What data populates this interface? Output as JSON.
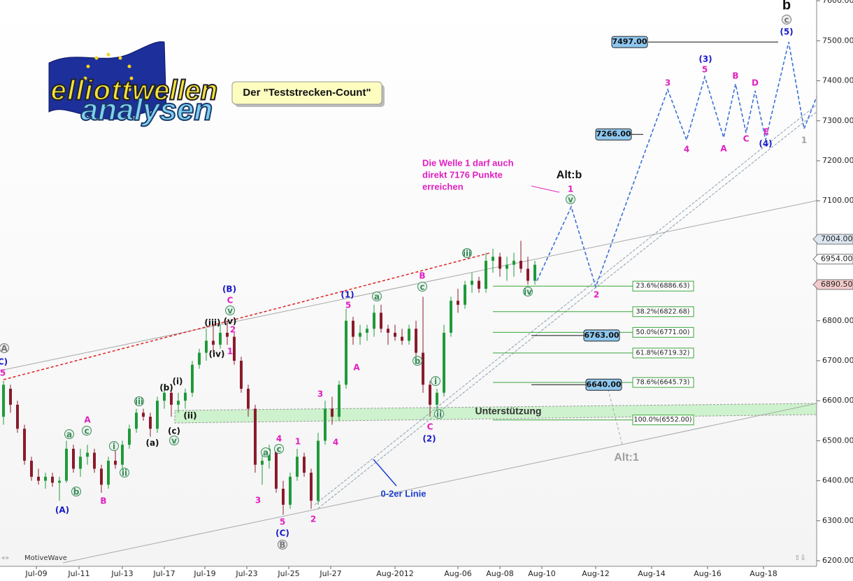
{
  "chart_data": {
    "type": "candlestick",
    "brand": "MotiveWave",
    "up_color": "#1f9a3a",
    "down_color": "#8a1b2b",
    "ylim": [
      6186,
      7602
    ],
    "yticks": [
      {
        "value": 7600,
        "label": "7600.00"
      },
      {
        "value": 7500,
        "label": "7500.00"
      },
      {
        "value": 7400,
        "label": "7400.00"
      },
      {
        "value": 7300,
        "label": "7300.00"
      },
      {
        "value": 7200,
        "label": "7200.00"
      },
      {
        "value": 7100,
        "label": "7100.00"
      },
      {
        "value": 6800,
        "label": "6800.00"
      },
      {
        "value": 6700,
        "label": "6700.00"
      },
      {
        "value": 6600,
        "label": "6600.00"
      },
      {
        "value": 6500,
        "label": "6500.00"
      },
      {
        "value": 6400,
        "label": "6400.00"
      },
      {
        "value": 6300,
        "label": "6300.00"
      },
      {
        "value": 6200,
        "label": "6200.00"
      }
    ],
    "x_labels": [
      "Jul-09",
      "Jul-11",
      "Jul-13",
      "Jul-17",
      "Jul-19",
      "Jul-23",
      "Jul-25",
      "Jul-27",
      "Aug-2012",
      "Aug-06",
      "Aug-08",
      "Aug-10",
      "Aug-12",
      "Aug-14",
      "Aug-16",
      "Aug-18"
    ],
    "candles": [
      [
        6560,
        6650,
        6540,
        6640
      ],
      [
        6630,
        6640,
        6570,
        6590
      ],
      [
        6590,
        6600,
        6520,
        6530
      ],
      [
        6530,
        6540,
        6440,
        6450
      ],
      [
        6450,
        6460,
        6400,
        6410
      ],
      [
        6410,
        6430,
        6390,
        6400
      ],
      [
        6400,
        6420,
        6380,
        6410
      ],
      [
        6410,
        6420,
        6385,
        6395
      ],
      [
        6395,
        6410,
        6350,
        6400
      ],
      [
        6400,
        6500,
        6395,
        6480
      ],
      [
        6480,
        6490,
        6420,
        6430
      ],
      [
        6430,
        6480,
        6410,
        6460
      ],
      [
        6460,
        6490,
        6440,
        6470
      ],
      [
        6470,
        6480,
        6420,
        6430
      ],
      [
        6430,
        6440,
        6370,
        6390
      ],
      [
        6390,
        6460,
        6380,
        6450
      ],
      [
        6450,
        6480,
        6430,
        6440
      ],
      [
        6440,
        6500,
        6430,
        6490
      ],
      [
        6490,
        6540,
        6480,
        6530
      ],
      [
        6530,
        6580,
        6520,
        6570
      ],
      [
        6570,
        6580,
        6550,
        6560
      ],
      [
        6560,
        6570,
        6510,
        6530
      ],
      [
        6530,
        6610,
        6520,
        6600
      ],
      [
        6600,
        6640,
        6580,
        6620
      ],
      [
        6620,
        6630,
        6560,
        6590
      ],
      [
        6590,
        6620,
        6570,
        6600
      ],
      [
        6600,
        6630,
        6580,
        6620
      ],
      [
        6620,
        6700,
        6610,
        6690
      ],
      [
        6690,
        6730,
        6680,
        6720
      ],
      [
        6720,
        6780,
        6700,
        6750
      ],
      [
        6750,
        6790,
        6720,
        6740
      ],
      [
        6740,
        6790,
        6730,
        6770
      ],
      [
        6770,
        6800,
        6740,
        6760
      ],
      [
        6760,
        6770,
        6690,
        6700
      ],
      [
        6700,
        6710,
        6620,
        6630
      ],
      [
        6630,
        6640,
        6560,
        6580
      ],
      [
        6580,
        6590,
        6420,
        6440
      ],
      [
        6440,
        6470,
        6390,
        6450
      ],
      [
        6450,
        6490,
        6430,
        6480
      ],
      [
        6480,
        6490,
        6370,
        6380
      ],
      [
        6380,
        6400,
        6315,
        6340
      ],
      [
        6340,
        6420,
        6330,
        6410
      ],
      [
        6410,
        6480,
        6400,
        6460
      ],
      [
        6460,
        6470,
        6410,
        6420
      ],
      [
        6420,
        6430,
        6330,
        6350
      ],
      [
        6350,
        6520,
        6340,
        6500
      ],
      [
        6500,
        6600,
        6490,
        6580
      ],
      [
        6580,
        6610,
        6540,
        6560
      ],
      [
        6560,
        6650,
        6550,
        6640
      ],
      [
        6640,
        6830,
        6630,
        6800
      ],
      [
        6800,
        6810,
        6740,
        6760
      ],
      [
        6760,
        6790,
        6740,
        6770
      ],
      [
        6770,
        6790,
        6750,
        6780
      ],
      [
        6780,
        6840,
        6760,
        6820
      ],
      [
        6820,
        6840,
        6770,
        6780
      ],
      [
        6780,
        6790,
        6740,
        6770
      ],
      [
        6770,
        6790,
        6750,
        6760
      ],
      [
        6760,
        6780,
        6740,
        6750
      ],
      [
        6750,
        6790,
        6740,
        6780
      ],
      [
        6780,
        6800,
        6700,
        6720
      ],
      [
        6720,
        6860,
        6620,
        6640
      ],
      [
        6640,
        6650,
        6560,
        6590
      ],
      [
        6590,
        6630,
        6570,
        6620
      ],
      [
        6620,
        6790,
        6610,
        6770
      ],
      [
        6770,
        6860,
        6760,
        6850
      ],
      [
        6850,
        6880,
        6820,
        6840
      ],
      [
        6840,
        6900,
        6830,
        6890
      ],
      [
        6890,
        6920,
        6870,
        6900
      ],
      [
        6900,
        6910,
        6870,
        6880
      ],
      [
        6880,
        6970,
        6870,
        6950
      ],
      [
        6950,
        6980,
        6920,
        6960
      ],
      [
        6960,
        6970,
        6910,
        6930
      ],
      [
        6930,
        6960,
        6900,
        6940
      ],
      [
        6940,
        6970,
        6910,
        6950
      ],
      [
        6950,
        7000,
        6920,
        6930
      ],
      [
        6930,
        6960,
        6890,
        6900
      ],
      [
        6900,
        6950,
        6890,
        6940
      ]
    ],
    "price_tags": [
      {
        "value": 7004,
        "label": "7004.00",
        "color": "#dbe6f0"
      },
      {
        "value": 6954,
        "label": "6954.00",
        "color": "#ffffff"
      },
      {
        "value": 6890.5,
        "label": "6890.50",
        "color": "#f3c9c9"
      }
    ],
    "price_boxes": [
      {
        "value": 7497,
        "label": "7497.00"
      },
      {
        "value": 7266,
        "label": "7266.00"
      },
      {
        "value": 6763,
        "label": "6763.00"
      },
      {
        "value": 6640,
        "label": "6640.00"
      }
    ],
    "fib_color": "#3aa53a",
    "fib_levels": [
      {
        "value": 6886.63,
        "label": "23.6%(6886.63)"
      },
      {
        "value": 6822.68,
        "label": "38.2%(6822.68)"
      },
      {
        "value": 6771,
        "label": "50.0%(6771.00)"
      },
      {
        "value": 6719.32,
        "label": "61.8%(6719.32)"
      },
      {
        "value": 6645.73,
        "label": "78.6%(6645.73)"
      },
      {
        "value": 6552,
        "label": "100.0%(6552.00)"
      }
    ],
    "projection": {
      "color": "#3a6fd8",
      "values": [
        6900,
        7085,
        6885,
        7378,
        7252,
        7410,
        7258,
        7392,
        7270,
        7375,
        7252,
        7497,
        7280,
        7360
      ]
    },
    "wave_labels": [
      "A",
      "C)",
      "5",
      "(A)",
      "a",
      "b",
      "A",
      "c",
      "B",
      "i",
      "ii",
      "iii",
      "(a)",
      "(b)",
      "(i)",
      "(c)",
      "v",
      "(ii)",
      "(iii)",
      "(iv)",
      "(v)",
      "1",
      "2",
      "C",
      "v",
      "(B)",
      "3",
      "4",
      "a",
      "c",
      "5",
      "(C)",
      "B",
      "1",
      "2",
      "3",
      "4",
      "(1)",
      "5",
      "a",
      "A",
      "b",
      "B",
      "c",
      "i",
      "C",
      "ii",
      "(2)",
      "iii",
      "iv",
      "1",
      "v",
      "2",
      "3",
      "4",
      "(3)",
      "5",
      "A",
      "B",
      "C",
      "D",
      "E",
      "(4)",
      "(5)",
      "c",
      "1"
    ],
    "annotations": {
      "title_box": "Der \"Teststrecken-Count\"",
      "note": [
        "Die Welle 1 darf auch",
        "direkt 7176 Punkte",
        "erreichen"
      ],
      "alt_b": "Alt:b",
      "support": "Unterstützung",
      "zero_two": "0-2er Linie",
      "alt_1": "Alt:1",
      "degree": "b"
    },
    "logo": [
      "elliott",
      "wellen",
      "analysen"
    ]
  }
}
